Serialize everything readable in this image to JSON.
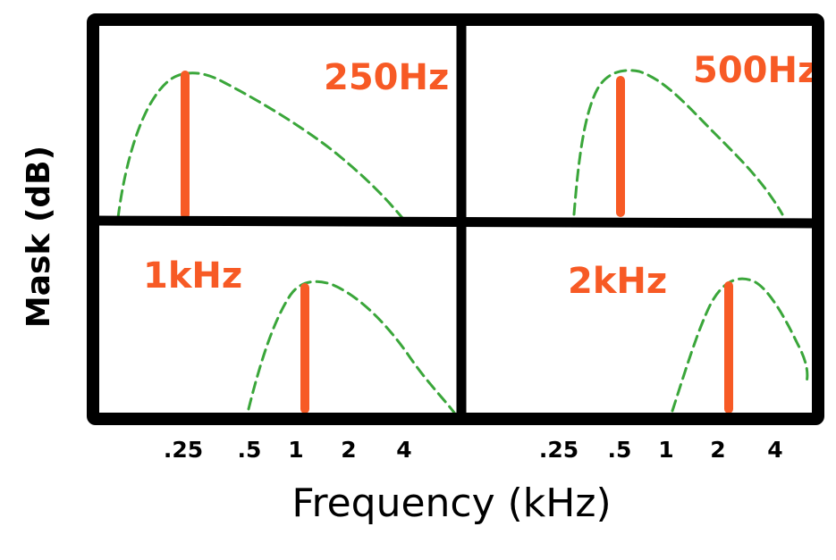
{
  "axes": {
    "x_title": "Frequency (kHz)",
    "y_title": "Mask (dB)",
    "left_ticks": [
      ".25",
      ".5",
      "1",
      "2",
      "4"
    ],
    "right_ticks": [
      ".25",
      ".5",
      "1",
      "2",
      "4"
    ]
  },
  "panels": [
    {
      "label": "250Hz",
      "masker_khz": 0.25
    },
    {
      "label": "500Hz",
      "masker_khz": 0.5
    },
    {
      "label": "1kHz",
      "masker_khz": 1
    },
    {
      "label": "2kHz",
      "masker_khz": 2
    }
  ],
  "colors": {
    "masker": "#f75a25",
    "curve": "#3aa63a",
    "frame": "#000000"
  }
}
